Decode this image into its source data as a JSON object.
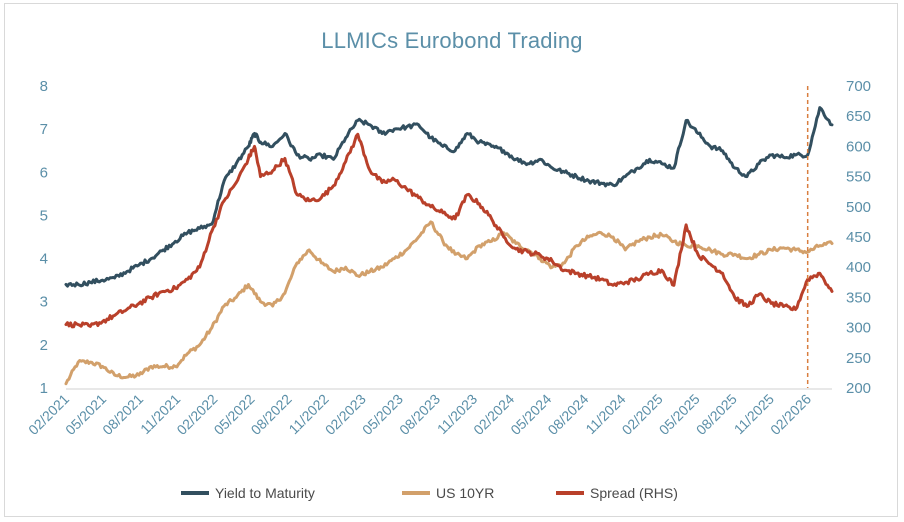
{
  "chart_data": {
    "type": "line",
    "title": "LLMICs Eurobond Trading",
    "x_tick_labels": [
      "02/2021",
      "05/2021",
      "08/2021",
      "11/2021",
      "02/2022",
      "05/2022",
      "08/2022",
      "11/2022",
      "02/2023",
      "05/2023",
      "08/2023",
      "11/2023",
      "02/2024",
      "05/2024",
      "08/2024",
      "11/2024",
      "02/2025",
      "05/2025",
      "08/2025",
      "11/2025",
      "02/2026"
    ],
    "y_left": {
      "ylim": [
        1,
        8
      ],
      "ticks": [
        "1",
        "2",
        "3",
        "4",
        "5",
        "6",
        "7",
        "8"
      ]
    },
    "y_right": {
      "ylim": [
        200,
        700
      ],
      "ticks": [
        "200",
        "250",
        "300",
        "350",
        "400",
        "450",
        "500",
        "550",
        "600",
        "650",
        "700"
      ]
    },
    "x_range": [
      0,
      63
    ],
    "marker_x": 61,
    "grid": false,
    "legend_position": "bottom",
    "colors": {
      "ytm": "#324f5f",
      "us10": "#d2a06b",
      "spread": "#b9402a",
      "marker": "#d97e3f",
      "axis_text": "#5b8fa8",
      "title": "#5b8fa8"
    },
    "series": [
      {
        "name": "Yield to Maturity",
        "axis": "left",
        "key": "ytm",
        "x": [
          0,
          1,
          2,
          3,
          4,
          5,
          6,
          7,
          8,
          9,
          10,
          11,
          12,
          13,
          14,
          15,
          15.5,
          16,
          17,
          18,
          19,
          20,
          21,
          22,
          23,
          24,
          25,
          26,
          27,
          28,
          29,
          30,
          31,
          32,
          33,
          34,
          35,
          36,
          37,
          38,
          39,
          40,
          41,
          42,
          43,
          44,
          45,
          46,
          47,
          48,
          49,
          50,
          51,
          52,
          53,
          54,
          55,
          56,
          57,
          58,
          59,
          60,
          61,
          62,
          63
        ],
        "values": [
          3.4,
          3.4,
          3.45,
          3.5,
          3.55,
          3.7,
          3.85,
          4.0,
          4.2,
          4.4,
          4.6,
          4.7,
          4.8,
          5.8,
          6.2,
          6.6,
          6.9,
          6.7,
          6.6,
          6.9,
          6.4,
          6.3,
          6.4,
          6.3,
          6.8,
          7.2,
          7.1,
          6.9,
          7.0,
          7.05,
          7.1,
          6.8,
          6.6,
          6.5,
          6.9,
          6.7,
          6.6,
          6.5,
          6.3,
          6.2,
          6.3,
          6.1,
          6.0,
          5.9,
          5.8,
          5.75,
          5.7,
          5.9,
          6.1,
          6.3,
          6.2,
          6.1,
          7.2,
          6.9,
          6.6,
          6.5,
          6.1,
          5.9,
          6.2,
          6.4,
          6.35,
          6.4,
          6.4,
          7.5,
          7.1
        ]
      },
      {
        "name": "US 10YR",
        "axis": "left",
        "key": "us10",
        "x": [
          0,
          1,
          2,
          3,
          4,
          5,
          6,
          7,
          8,
          9,
          10,
          11,
          12,
          13,
          14,
          15,
          16,
          17,
          18,
          19,
          20,
          21,
          22,
          23,
          24,
          25,
          26,
          27,
          28,
          29,
          30,
          31,
          32,
          33,
          34,
          35,
          36,
          37,
          38,
          39,
          40,
          41,
          42,
          43,
          44,
          45,
          46,
          47,
          48,
          49,
          50,
          51,
          52,
          53,
          54,
          55,
          56,
          57,
          58,
          59,
          60,
          61,
          62,
          63
        ],
        "values": [
          1.1,
          1.6,
          1.6,
          1.5,
          1.3,
          1.25,
          1.3,
          1.5,
          1.5,
          1.5,
          1.8,
          2.0,
          2.4,
          2.9,
          3.1,
          3.4,
          3.0,
          2.9,
          3.2,
          3.9,
          4.2,
          3.9,
          3.7,
          3.8,
          3.6,
          3.7,
          3.8,
          4.0,
          4.2,
          4.5,
          4.85,
          4.4,
          4.1,
          4.0,
          4.3,
          4.4,
          4.6,
          4.35,
          4.2,
          4.0,
          3.8,
          3.9,
          4.3,
          4.5,
          4.6,
          4.5,
          4.2,
          4.4,
          4.5,
          4.55,
          4.4,
          4.3,
          4.3,
          4.2,
          4.1,
          4.1,
          4.0,
          4.1,
          4.2,
          4.25,
          4.2,
          4.15,
          4.3,
          4.35
        ]
      },
      {
        "name": "Spread (RHS)",
        "axis": "right",
        "key": "spread",
        "x": [
          0,
          1,
          2,
          3,
          4,
          5,
          6,
          7,
          8,
          9,
          10,
          11,
          12,
          13,
          14,
          15,
          15.5,
          16,
          17,
          18,
          19,
          20,
          21,
          22,
          23,
          24,
          25,
          26,
          27,
          28,
          29,
          30,
          31,
          32,
          33,
          34,
          35,
          36,
          37,
          38,
          39,
          40,
          41,
          42,
          43,
          44,
          45,
          46,
          47,
          48,
          49,
          50,
          51,
          52,
          53,
          54,
          55,
          56,
          57,
          58,
          59,
          60,
          61,
          62,
          63
        ],
        "values": [
          305,
          305,
          302,
          310,
          320,
          330,
          340,
          350,
          360,
          365,
          380,
          400,
          460,
          510,
          540,
          580,
          600,
          550,
          560,
          580,
          520,
          510,
          515,
          535,
          575,
          620,
          560,
          540,
          545,
          530,
          515,
          500,
          490,
          480,
          520,
          505,
          480,
          450,
          430,
          425,
          420,
          410,
          395,
          390,
          385,
          380,
          370,
          375,
          380,
          390,
          395,
          370,
          470,
          420,
          405,
          390,
          350,
          335,
          355,
          340,
          335,
          330,
          380,
          390,
          360
        ]
      }
    ]
  }
}
